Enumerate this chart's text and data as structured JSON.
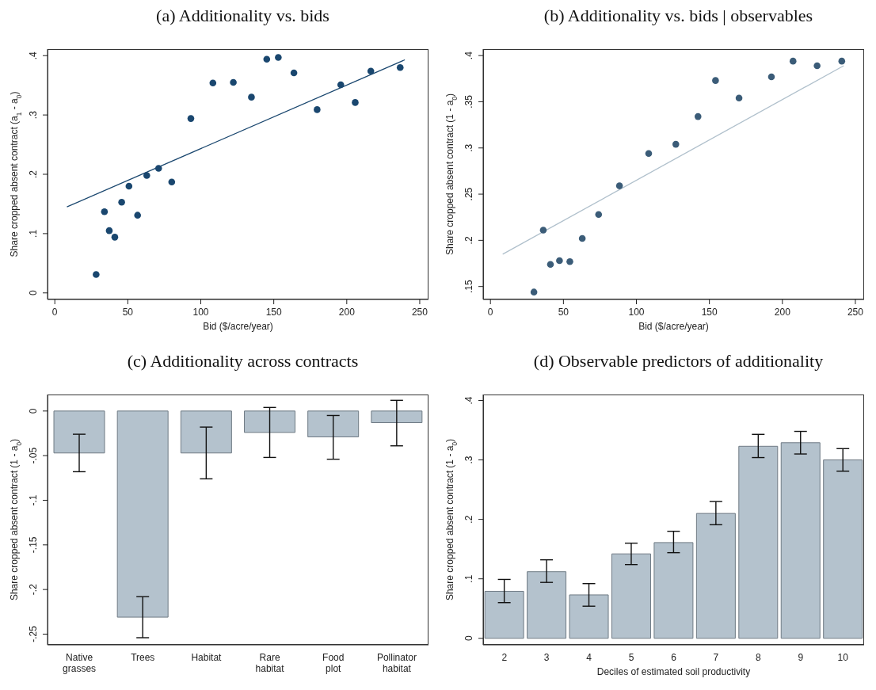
{
  "chart_data": [
    {
      "type": "scatter",
      "title": "(a) Additionality vs. bids",
      "xlabel": "Bid ($/acre/year)",
      "ylabel": "Share cropped absent contract (a$_{1}$ - a$_{0}$)",
      "xlim": [
        -5,
        256
      ],
      "xticks": [
        0,
        50,
        100,
        150,
        200,
        250
      ],
      "ylim": [
        -0.011,
        0.411
      ],
      "yticks": [
        {
          "value": 0,
          "label": "0"
        },
        {
          "value": 0.1,
          "label": ".1"
        },
        {
          "value": 0.2,
          "label": ".2"
        },
        {
          "value": 0.3,
          "label": ".3"
        },
        {
          "value": 0.4,
          "label": ".4"
        }
      ],
      "series": [
        {
          "type": "scatter",
          "marker": "circle",
          "color": "#1a476f",
          "x": [
            28.3,
            34.0,
            37.3,
            41.1,
            45.8,
            50.8,
            56.7,
            63.0,
            71.1,
            80.1,
            93.2,
            108.3,
            122.3,
            134.7,
            145.2,
            153.1,
            163.8,
            179.7,
            195.9,
            205.8,
            216.5,
            236.6
          ],
          "values": [
            0.031,
            0.137,
            0.105,
            0.094,
            0.153,
            0.18,
            0.131,
            0.198,
            0.21,
            0.187,
            0.294,
            0.354,
            0.355,
            0.33,
            0.394,
            0.397,
            0.371,
            0.309,
            0.351,
            0.321,
            0.374,
            0.38
          ]
        },
        {
          "type": "line",
          "color": "#1a476f",
          "x": [
            8.3,
            239.8
          ],
          "values": [
            0.145,
            0.393
          ]
        }
      ]
    },
    {
      "type": "scatter",
      "title": "(b) Additionality vs. bids | observables",
      "xlabel": "Bid ($/acre/year)",
      "ylabel": "Share cropped absent contract (1 - a$_{0}$)",
      "xlim": [
        -5,
        256
      ],
      "xticks": [
        0,
        50,
        100,
        150,
        200,
        250
      ],
      "ylim": [
        0.136,
        0.407
      ],
      "yticks": [
        {
          "value": 0.15,
          "label": ".15"
        },
        {
          "value": 0.2,
          "label": ".2"
        },
        {
          "value": 0.25,
          "label": ".25"
        },
        {
          "value": 0.3,
          "label": ".3"
        },
        {
          "value": 0.35,
          "label": ".35"
        },
        {
          "value": 0.4,
          "label": ".4"
        }
      ],
      "series": [
        {
          "type": "scatter",
          "marker": "circle",
          "color": "#3b5c78",
          "x": [
            29.8,
            36.2,
            41.1,
            47.3,
            54.4,
            62.9,
            74.1,
            88.4,
            108.4,
            127.0,
            142.2,
            154.2,
            170.3,
            192.5,
            207.3,
            223.8,
            240.7
          ],
          "values": [
            0.144,
            0.211,
            0.174,
            0.178,
            0.177,
            0.202,
            0.228,
            0.259,
            0.294,
            0.304,
            0.334,
            0.373,
            0.354,
            0.377,
            0.394,
            0.389,
            0.394
          ]
        },
        {
          "type": "line",
          "color": "#b0c0cc",
          "x": [
            8.4,
            242
          ],
          "values": [
            0.185,
            0.389
          ]
        }
      ]
    },
    {
      "type": "bar",
      "title": "(c) Additionality across contracts",
      "ylabel": "Share cropped absent contract (1 - a$_{0}$)",
      "categories": [
        "Native grasses",
        "Trees",
        "Habitat",
        "Rare habitat",
        "Food plot",
        "Pollinator habitat"
      ],
      "color": "#b4c2cd",
      "ylim": [
        -0.262,
        0.0185
      ],
      "yticks": [
        {
          "value": 0,
          "label": "0"
        },
        {
          "value": -0.05,
          "label": "-.05"
        },
        {
          "value": -0.1,
          "label": "-.1"
        },
        {
          "value": -0.15,
          "label": "-.15"
        },
        {
          "value": -0.2,
          "label": "-.2"
        },
        {
          "value": -0.25,
          "label": "-.25"
        }
      ],
      "values": [
        -0.047,
        -0.231,
        -0.047,
        -0.024,
        -0.029,
        -0.013
      ],
      "errors": [
        [
          -0.068,
          -0.026
        ],
        [
          -0.254,
          -0.208
        ],
        [
          -0.076,
          -0.018
        ],
        [
          -0.052,
          0.004
        ],
        [
          -0.054,
          -0.005
        ],
        [
          -0.039,
          0.012
        ]
      ]
    },
    {
      "type": "bar",
      "title": "(d) Observable predictors of additionality",
      "xlabel": "Deciles of estimated soil productivity",
      "ylabel": "Share cropped absent contract (1 - a$_{0}$)",
      "categories": [
        "2",
        "3",
        "4",
        "5",
        "6",
        "7",
        "8",
        "9",
        "10"
      ],
      "color": "#b4c2cd",
      "ylim": [
        -0.011,
        0.41
      ],
      "yticks": [
        {
          "value": 0,
          "label": "0"
        },
        {
          "value": 0.1,
          "label": ".1"
        },
        {
          "value": 0.2,
          "label": ".2"
        },
        {
          "value": 0.3,
          "label": ".3"
        },
        {
          "value": 0.4,
          "label": ".4"
        }
      ],
      "values": [
        0.079,
        0.112,
        0.073,
        0.142,
        0.161,
        0.21,
        0.323,
        0.329,
        0.3
      ],
      "errors": [
        [
          0.06,
          0.099
        ],
        [
          0.094,
          0.132
        ],
        [
          0.054,
          0.092
        ],
        [
          0.124,
          0.16
        ],
        [
          0.144,
          0.18
        ],
        [
          0.191,
          0.23
        ],
        [
          0.304,
          0.343
        ],
        [
          0.31,
          0.348
        ],
        [
          0.281,
          0.319
        ]
      ]
    }
  ]
}
